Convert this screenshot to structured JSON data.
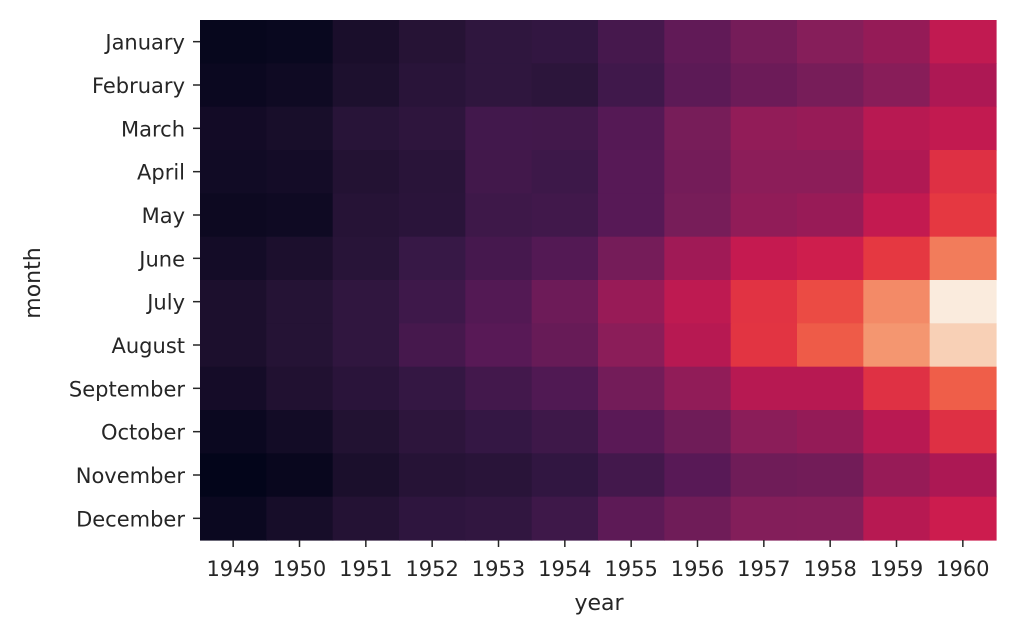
{
  "chart_data": {
    "type": "heatmap",
    "title": "",
    "xlabel": "year",
    "ylabel": "month",
    "x": [
      "1949",
      "1950",
      "1951",
      "1952",
      "1953",
      "1954",
      "1955",
      "1956",
      "1957",
      "1958",
      "1959",
      "1960"
    ],
    "y": [
      "January",
      "February",
      "March",
      "April",
      "May",
      "June",
      "July",
      "August",
      "September",
      "October",
      "November",
      "December"
    ],
    "colormap": "rocket",
    "colorbar": false,
    "vmin": 104,
    "vmax": 622,
    "values": [
      [
        112,
        115,
        145,
        171,
        196,
        204,
        242,
        284,
        315,
        340,
        360,
        417
      ],
      [
        118,
        126,
        150,
        180,
        196,
        188,
        233,
        277,
        301,
        318,
        342,
        391
      ],
      [
        132,
        141,
        178,
        193,
        236,
        235,
        267,
        317,
        356,
        362,
        406,
        419
      ],
      [
        129,
        135,
        163,
        181,
        235,
        227,
        269,
        313,
        348,
        348,
        396,
        461
      ],
      [
        121,
        125,
        172,
        183,
        229,
        234,
        270,
        318,
        355,
        363,
        420,
        472
      ],
      [
        135,
        149,
        178,
        218,
        243,
        264,
        315,
        374,
        422,
        435,
        472,
        535
      ],
      [
        148,
        170,
        199,
        230,
        264,
        302,
        364,
        413,
        465,
        491,
        548,
        622
      ],
      [
        148,
        170,
        199,
        242,
        272,
        293,
        347,
        405,
        467,
        505,
        559,
        606
      ],
      [
        136,
        158,
        184,
        209,
        237,
        259,
        312,
        355,
        404,
        404,
        463,
        508
      ],
      [
        119,
        133,
        162,
        191,
        211,
        229,
        274,
        306,
        347,
        359,
        407,
        461
      ],
      [
        104,
        114,
        146,
        172,
        180,
        203,
        237,
        271,
        305,
        310,
        362,
        390
      ],
      [
        118,
        140,
        166,
        194,
        201,
        229,
        278,
        306,
        336,
        337,
        405,
        432
      ]
    ]
  }
}
